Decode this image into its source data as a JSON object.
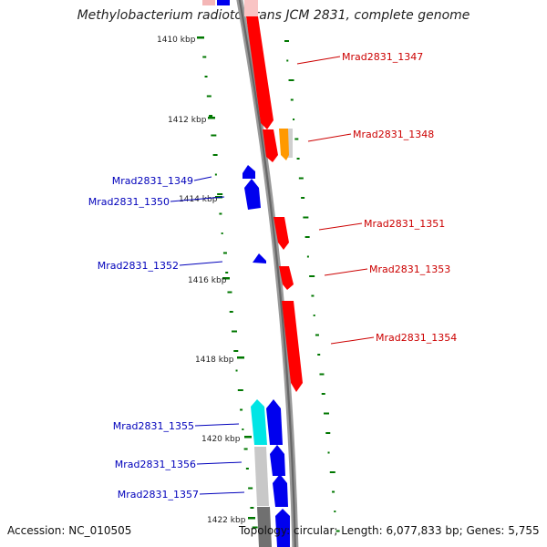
{
  "title": "Methylobacterium radiotolerans JCM 2831, complete genome",
  "accession": "Accession: NC_010505",
  "topology": "Topology: circular; Length: 6,077,833 bp; Genes: 5,755",
  "ticks": [
    "1410 kbp",
    "1412 kbp",
    "1414 kbp",
    "1416 kbp",
    "1418 kbp",
    "1420 kbp",
    "1422 kbp"
  ],
  "genes_forward": [
    "Mrad2831_1347",
    "Mrad2831_1348",
    "Mrad2831_1351",
    "Mrad2831_1353",
    "Mrad2831_1354"
  ],
  "genes_reverse": [
    "Mrad2831_1349",
    "Mrad2831_1350",
    "Mrad2831_1352",
    "Mrad2831_1355",
    "Mrad2831_1356",
    "Mrad2831_1357"
  ],
  "colors": {
    "forward": "#ff0000",
    "reverse": "#0000ee",
    "highlight_forward": "#ff9900",
    "highlight_reverse": "#00e5e5",
    "label_forward": "#cc0000",
    "label_reverse": "#0000bb",
    "backbone": "#808080",
    "dots": "#007700"
  }
}
